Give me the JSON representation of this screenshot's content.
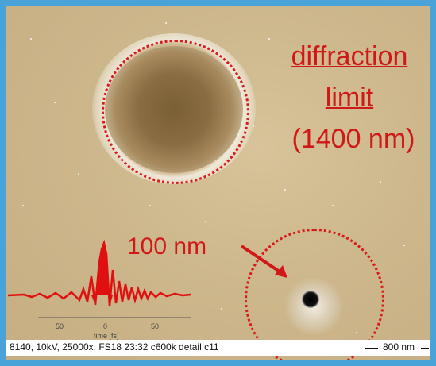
{
  "annotations": {
    "diffraction_line1": "diffraction",
    "diffraction_line2": "limit",
    "diffraction_line3": "(1400 nm)",
    "spot_label": "100 nm"
  },
  "caption": {
    "text": "8140, 10kV, 25000x, FS18 23:32 c600k detail c11",
    "scale_label": "800 nm"
  },
  "inset_plot": {
    "tick_labels": [
      "50",
      "0",
      "50"
    ],
    "xlabel": "time [fs]"
  },
  "colors": {
    "annotation": "#d01818",
    "frame": "#4aa3d8",
    "surface": "#cdb78c"
  }
}
